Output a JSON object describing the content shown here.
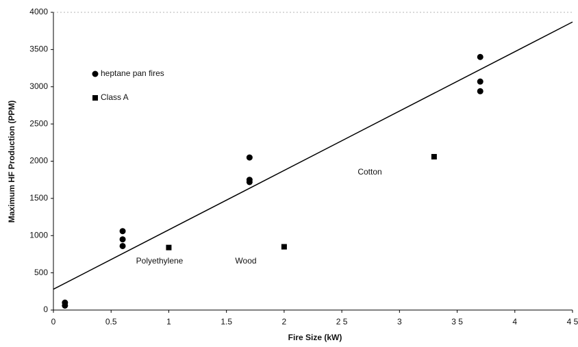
{
  "chart_data": {
    "type": "scatter",
    "x_label": "Fire Size (kW)",
    "y_label": "Maximum HF Production (PPM)",
    "xlim": [
      0,
      4.5
    ],
    "ylim": [
      0,
      4000
    ],
    "xticks": [
      0,
      0.5,
      1,
      1.5,
      2,
      {
        "value": 2.5,
        "label": "2 5"
      },
      3,
      {
        "value": 3.5,
        "label": "3 5"
      },
      4,
      {
        "value": 4.5,
        "label": "4 5"
      }
    ],
    "yticks": [
      0,
      500,
      1000,
      1500,
      2000,
      2500,
      3000,
      3500,
      4000
    ],
    "series": [
      {
        "name": "heptane pan fires",
        "color": "#000000",
        "marker": "circle",
        "x": [
          0.1,
          0.1,
          0.6,
          0.6,
          0.6,
          1.7,
          1.7,
          1.7,
          3.7,
          3.7,
          3.7
        ],
        "values": [
          100,
          60,
          1060,
          950,
          860,
          2050,
          1750,
          1720,
          3400,
          3070,
          2940
        ]
      },
      {
        "name": "Class A",
        "color": "#000000",
        "marker": "square",
        "x": [
          1,
          2,
          3.3
        ],
        "values": [
          840,
          850,
          2060
        ]
      }
    ],
    "trendline": {
      "x": [
        0,
        4.5
      ],
      "values": [
        280,
        3870
      ],
      "color": "#000000"
    },
    "annotations": [
      "Polyethylene",
      "Wood",
      "Cotton"
    ]
  }
}
